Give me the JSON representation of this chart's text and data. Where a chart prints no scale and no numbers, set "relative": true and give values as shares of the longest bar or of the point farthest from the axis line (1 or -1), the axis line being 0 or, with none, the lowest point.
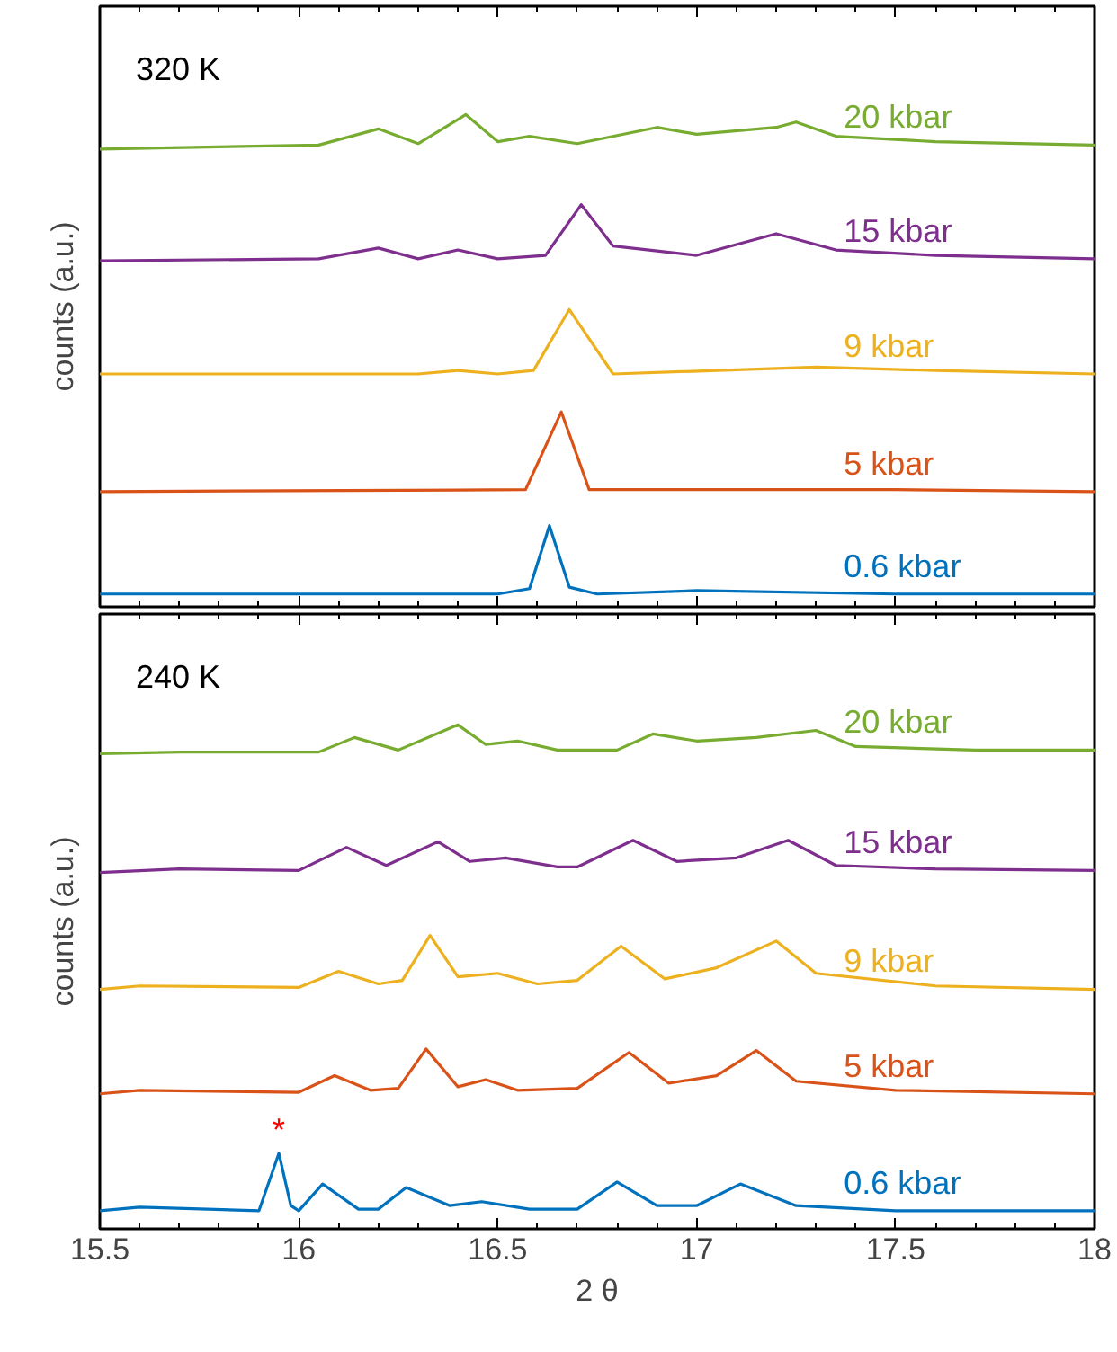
{
  "chart_data": [
    {
      "type": "line",
      "relative": true,
      "ylabel": "counts (a.u.)",
      "annotations": [
        "320 K"
      ],
      "xlim": [
        15.5,
        18
      ],
      "xticks": [
        15.5,
        16,
        16.5,
        17,
        17.5,
        18
      ],
      "tick_labels": false,
      "grid": false,
      "legend": false,
      "series": [
        {
          "name": "0.6 kbar",
          "color": "#0072bd",
          "x": [
            15.5,
            16.5,
            16.58,
            16.63,
            16.68,
            16.75,
            17.0,
            17.5,
            18
          ],
          "values": [
            0.026,
            0.026,
            0.037,
            0.165,
            0.04,
            0.026,
            0.033,
            0.026,
            0.026
          ]
        },
        {
          "name": "5 kbar",
          "color": "#d95319",
          "x": [
            15.5,
            16.57,
            16.66,
            16.73,
            17.0,
            17.5,
            18
          ],
          "values": [
            0.234,
            0.238,
            0.396,
            0.238,
            0.238,
            0.238,
            0.234
          ]
        },
        {
          "name": "9 kbar",
          "color": "#edb120",
          "x": [
            15.5,
            16.3,
            16.4,
            16.5,
            16.59,
            16.68,
            16.79,
            17.3,
            17.6,
            18
          ],
          "values": [
            0.473,
            0.473,
            0.48,
            0.473,
            0.48,
            0.604,
            0.473,
            0.487,
            0.48,
            0.473
          ]
        },
        {
          "name": "15 kbar",
          "color": "#7e2f8e",
          "x": [
            15.5,
            16.05,
            16.2,
            16.3,
            16.4,
            16.5,
            16.62,
            16.71,
            16.79,
            17.0,
            17.2,
            17.35,
            17.6,
            18
          ],
          "values": [
            0.703,
            0.707,
            0.729,
            0.707,
            0.725,
            0.707,
            0.714,
            0.817,
            0.733,
            0.714,
            0.758,
            0.725,
            0.714,
            0.707
          ]
        },
        {
          "name": "20 kbar",
          "color": "#77ac30",
          "x": [
            15.5,
            16.05,
            16.2,
            16.3,
            16.42,
            16.5,
            16.58,
            16.7,
            16.9,
            17.0,
            17.2,
            17.25,
            17.35,
            17.6,
            18
          ],
          "values": [
            0.93,
            0.938,
            0.971,
            0.941,
            1.0,
            0.945,
            0.956,
            0.941,
            0.974,
            0.96,
            0.974,
            0.985,
            0.956,
            0.945,
            0.938
          ]
        }
      ]
    },
    {
      "type": "line",
      "relative": true,
      "xlabel": "2 θ",
      "ylabel": "counts (a.u.)",
      "annotations": [
        "240 K",
        {
          "text": "*",
          "x": 15.95,
          "y": 0.16
        }
      ],
      "xlim": [
        15.5,
        18
      ],
      "xticks": [
        15.5,
        16,
        16.5,
        17,
        17.5,
        18
      ],
      "tick_labels": "x",
      "grid": false,
      "legend": false,
      "series": [
        {
          "name": "0.6 kbar",
          "color": "#0072bd",
          "x": [
            15.5,
            15.6,
            15.9,
            15.95,
            15.98,
            16.0,
            16.06,
            16.15,
            16.2,
            16.27,
            16.38,
            16.46,
            16.58,
            16.7,
            16.8,
            16.9,
            17.0,
            17.11,
            17.25,
            17.5,
            18
          ],
          "values": [
            0.036,
            0.043,
            0.036,
            0.15,
            0.046,
            0.036,
            0.089,
            0.039,
            0.039,
            0.082,
            0.046,
            0.054,
            0.039,
            0.039,
            0.093,
            0.046,
            0.046,
            0.089,
            0.046,
            0.036,
            0.036
          ]
        },
        {
          "name": "5 kbar",
          "color": "#d95319",
          "x": [
            15.5,
            15.6,
            16.0,
            16.09,
            16.18,
            16.25,
            16.32,
            16.4,
            16.47,
            16.55,
            16.7,
            16.83,
            16.93,
            17.05,
            17.15,
            17.25,
            17.5,
            18
          ],
          "values": [
            0.268,
            0.275,
            0.271,
            0.304,
            0.275,
            0.279,
            0.357,
            0.282,
            0.296,
            0.275,
            0.279,
            0.35,
            0.289,
            0.304,
            0.354,
            0.293,
            0.275,
            0.268
          ]
        },
        {
          "name": "9 kbar",
          "color": "#edb120",
          "x": [
            15.5,
            15.6,
            16.0,
            16.1,
            16.2,
            16.26,
            16.33,
            16.4,
            16.5,
            16.6,
            16.7,
            16.81,
            16.92,
            17.05,
            17.2,
            17.3,
            17.6,
            18
          ],
          "values": [
            0.475,
            0.482,
            0.479,
            0.511,
            0.486,
            0.493,
            0.582,
            0.5,
            0.507,
            0.486,
            0.493,
            0.561,
            0.496,
            0.518,
            0.571,
            0.507,
            0.482,
            0.475
          ]
        },
        {
          "name": "15 kbar",
          "color": "#7e2f8e",
          "x": [
            15.5,
            15.7,
            16.0,
            16.12,
            16.22,
            16.35,
            16.43,
            16.52,
            16.65,
            16.7,
            16.84,
            16.95,
            17.1,
            17.23,
            17.35,
            17.6,
            18
          ],
          "values": [
            0.707,
            0.714,
            0.711,
            0.757,
            0.721,
            0.768,
            0.729,
            0.736,
            0.718,
            0.718,
            0.771,
            0.729,
            0.736,
            0.771,
            0.721,
            0.714,
            0.711
          ]
        },
        {
          "name": "20 kbar",
          "color": "#77ac30",
          "x": [
            15.5,
            15.7,
            16.05,
            16.14,
            16.25,
            16.4,
            16.47,
            16.55,
            16.65,
            16.8,
            16.89,
            17.0,
            17.15,
            17.3,
            17.4,
            17.7,
            18
          ],
          "values": [
            0.943,
            0.946,
            0.946,
            0.975,
            0.95,
            1.0,
            0.961,
            0.968,
            0.95,
            0.95,
            0.982,
            0.968,
            0.975,
            0.989,
            0.957,
            0.95,
            0.95
          ]
        }
      ]
    }
  ]
}
